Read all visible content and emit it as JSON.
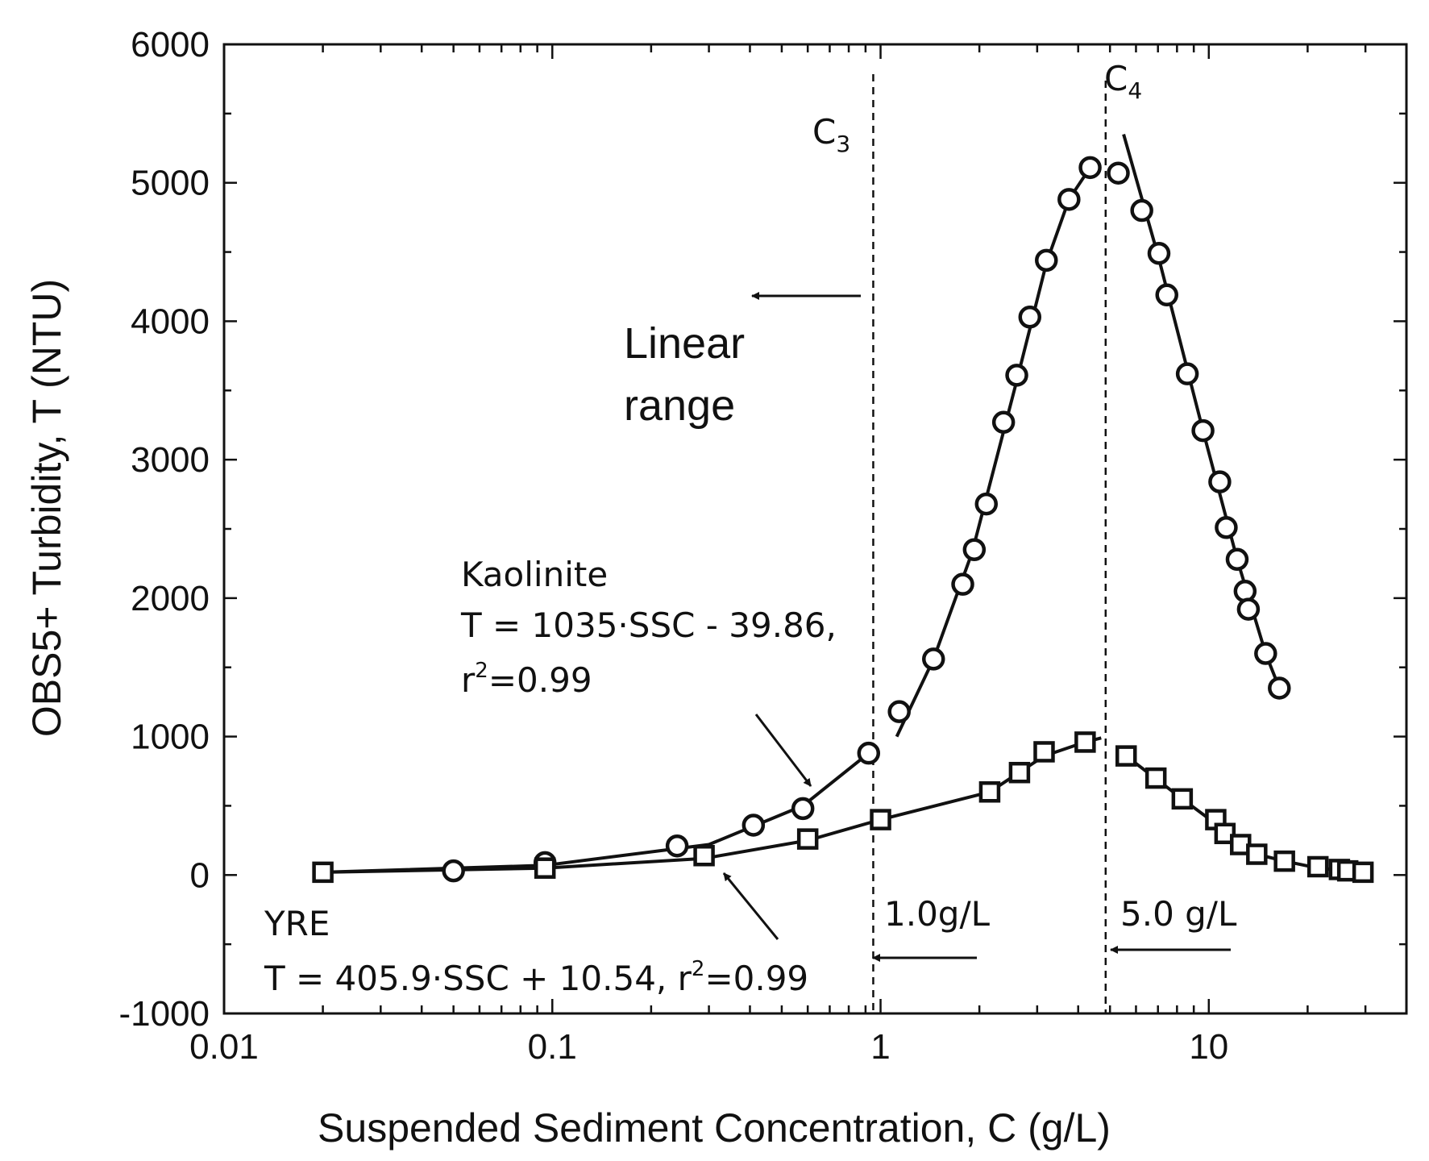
{
  "chart_data": {
    "type": "scatter",
    "x_scale": "log",
    "xlabel": "Suspended Sediment Concentration, C (g/L)",
    "ylabel": "OBS5+ Turbidity, T (NTU)",
    "xlim": [
      0.01,
      40
    ],
    "ylim": [
      -1000,
      6000
    ],
    "x_ticks": [
      {
        "value": 0.01,
        "label": "0.01"
      },
      {
        "value": 0.1,
        "label": "0.1"
      },
      {
        "value": 1,
        "label": "1"
      },
      {
        "value": 10,
        "label": "10"
      }
    ],
    "y_ticks": [
      {
        "value": -1000,
        "label": "-1000"
      },
      {
        "value": 0,
        "label": "0"
      },
      {
        "value": 1000,
        "label": "1000"
      },
      {
        "value": 2000,
        "label": "2000"
      },
      {
        "value": 3000,
        "label": "3000"
      },
      {
        "value": 4000,
        "label": "4000"
      },
      {
        "value": 5000,
        "label": "5000"
      },
      {
        "value": 6000,
        "label": "6000"
      }
    ],
    "series": [
      {
        "name": "Kaolinite",
        "marker": "circle",
        "points": [
          {
            "x": 0.05,
            "y": 30
          },
          {
            "x": 0.095,
            "y": 90
          },
          {
            "x": 0.24,
            "y": 210
          },
          {
            "x": 0.41,
            "y": 360
          },
          {
            "x": 0.58,
            "y": 480
          },
          {
            "x": 0.92,
            "y": 880
          },
          {
            "x": 1.14,
            "y": 1180
          },
          {
            "x": 1.45,
            "y": 1560
          },
          {
            "x": 1.78,
            "y": 2100
          },
          {
            "x": 1.93,
            "y": 2350
          },
          {
            "x": 2.1,
            "y": 2680
          },
          {
            "x": 2.37,
            "y": 3270
          },
          {
            "x": 2.6,
            "y": 3610
          },
          {
            "x": 2.85,
            "y": 4030
          },
          {
            "x": 3.2,
            "y": 4440
          },
          {
            "x": 3.75,
            "y": 4880
          },
          {
            "x": 4.35,
            "y": 5110
          },
          {
            "x": 5.3,
            "y": 5070
          },
          {
            "x": 6.25,
            "y": 4800
          },
          {
            "x": 7.05,
            "y": 4490
          },
          {
            "x": 7.45,
            "y": 4190
          },
          {
            "x": 8.6,
            "y": 3620
          },
          {
            "x": 9.6,
            "y": 3210
          },
          {
            "x": 10.8,
            "y": 2840
          },
          {
            "x": 11.3,
            "y": 2510
          },
          {
            "x": 12.2,
            "y": 2280
          },
          {
            "x": 12.9,
            "y": 2050
          },
          {
            "x": 13.2,
            "y": 1920
          },
          {
            "x": 14.9,
            "y": 1600
          },
          {
            "x": 16.4,
            "y": 1350
          }
        ],
        "fit_segments": [
          [
            {
              "x": 0.02,
              "y": 20
            },
            {
              "x": 0.095,
              "y": 70
            },
            {
              "x": 0.3,
              "y": 220
            },
            {
              "x": 0.58,
              "y": 500
            },
            {
              "x": 0.92,
              "y": 880
            }
          ],
          [
            {
              "x": 1.12,
              "y": 1000
            },
            {
              "x": 1.45,
              "y": 1560
            },
            {
              "x": 1.9,
              "y": 2330
            },
            {
              "x": 2.6,
              "y": 3570
            },
            {
              "x": 3.2,
              "y": 4420
            },
            {
              "x": 3.75,
              "y": 4880
            },
            {
              "x": 4.35,
              "y": 5110
            },
            {
              "x": 4.6,
              "y": 5160
            }
          ],
          [
            {
              "x": 5.5,
              "y": 5350
            },
            {
              "x": 7.05,
              "y": 4450
            },
            {
              "x": 9.6,
              "y": 3210
            },
            {
              "x": 12.2,
              "y": 2280
            },
            {
              "x": 14.9,
              "y": 1600
            },
            {
              "x": 16.4,
              "y": 1350
            }
          ]
        ]
      },
      {
        "name": "YRE",
        "marker": "square",
        "points": [
          {
            "x": 0.02,
            "y": 20
          },
          {
            "x": 0.095,
            "y": 50
          },
          {
            "x": 0.29,
            "y": 140
          },
          {
            "x": 0.6,
            "y": 260
          },
          {
            "x": 1.0,
            "y": 400
          },
          {
            "x": 2.15,
            "y": 600
          },
          {
            "x": 2.65,
            "y": 740
          },
          {
            "x": 3.15,
            "y": 890
          },
          {
            "x": 4.2,
            "y": 960
          },
          {
            "x": 5.6,
            "y": 860
          },
          {
            "x": 6.9,
            "y": 700
          },
          {
            "x": 8.3,
            "y": 550
          },
          {
            "x": 10.5,
            "y": 400
          },
          {
            "x": 11.2,
            "y": 300
          },
          {
            "x": 12.5,
            "y": 220
          },
          {
            "x": 14.0,
            "y": 150
          },
          {
            "x": 17.0,
            "y": 100
          },
          {
            "x": 21.5,
            "y": 60
          },
          {
            "x": 25.0,
            "y": 40
          },
          {
            "x": 26.5,
            "y": 30
          },
          {
            "x": 29.5,
            "y": 20
          }
        ],
        "fit_segments": [
          [
            {
              "x": 0.02,
              "y": 20
            },
            {
              "x": 0.095,
              "y": 50
            },
            {
              "x": 0.29,
              "y": 120
            },
            {
              "x": 0.6,
              "y": 250
            },
            {
              "x": 1.0,
              "y": 400
            },
            {
              "x": 2.15,
              "y": 600
            },
            {
              "x": 3.15,
              "y": 860
            },
            {
              "x": 4.2,
              "y": 960
            },
            {
              "x": 4.7,
              "y": 990
            }
          ],
          [
            {
              "x": 5.6,
              "y": 860
            },
            {
              "x": 8.3,
              "y": 550
            },
            {
              "x": 11.2,
              "y": 320
            },
            {
              "x": 14.0,
              "y": 150
            },
            {
              "x": 17.0,
              "y": 100
            },
            {
              "x": 21.5,
              "y": 50
            },
            {
              "x": 29.5,
              "y": 20
            }
          ]
        ]
      }
    ],
    "reference_lines": [
      {
        "x": 0.95,
        "label_main": "C",
        "label_sub": "3"
      },
      {
        "x": 4.85,
        "label_main": "C",
        "label_sub": "4"
      }
    ],
    "annotations": {
      "linear_range": [
        "Linear",
        "range"
      ],
      "kaolinite_name": "Kaolinite",
      "kaolinite_eq": "T = 1035·SSC - 39.86,",
      "kaolinite_r2_prefix": "r",
      "kaolinite_r2_sup": "2",
      "kaolinite_r2_value": "=0.99",
      "yre_name": "YRE",
      "yre_eq": "T = 405.9·SSC + 10.54,  r",
      "yre_r2_sup": "2",
      "yre_r2_value": "=0.99",
      "c3_threshold": "1.0g/L",
      "c4_threshold": "5.0 g/L"
    }
  }
}
